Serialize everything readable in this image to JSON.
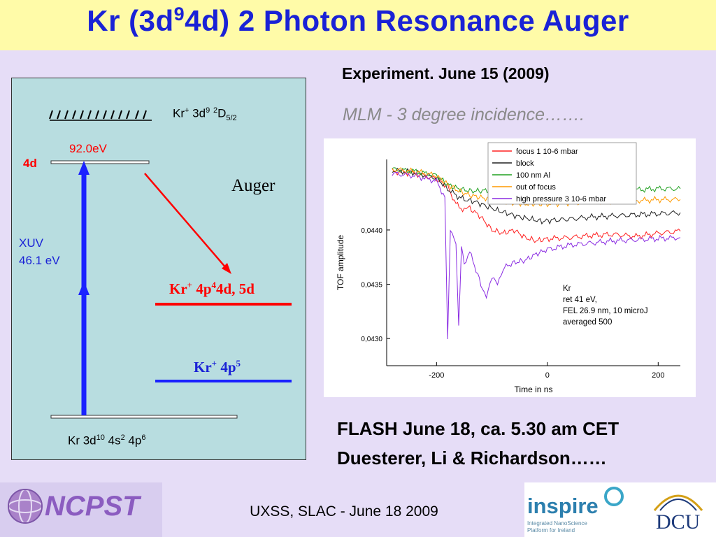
{
  "title": {
    "prefix": "Kr (3d",
    "sup": "9",
    "suffix": "4d) 2 Photon Resonance Auger"
  },
  "diagram": {
    "ion_level": {
      "base": "Kr",
      "plus": "+",
      "mid": " 3d",
      "sup1": "9",
      "sp": " ",
      "sup2": "2",
      "D": "D",
      "sub": "5/2"
    },
    "energy_label": "92.0eV",
    "state_4d": "4d",
    "xuv_line1": "XUV",
    "xuv_line2": "46.1 eV",
    "auger": "Auger",
    "final1": {
      "base": "Kr",
      "plus": "+",
      "mid": " 4p",
      "sup": "4",
      "end": "4d, 5d"
    },
    "final2": {
      "base": "Kr",
      "plus": "+",
      "mid": " 4p",
      "sup": "5"
    },
    "ground": {
      "a": "Kr 3d",
      "s1": "10",
      "b": " 4s",
      "s2": "2",
      "c": " 4p",
      "s3": "6"
    }
  },
  "experiment_heading": "Experiment. June 15 (2009)",
  "experiment_sub": "MLM - 3 degree incidence…….",
  "chart_data": {
    "type": "line",
    "xlabel": "Time in ns",
    "ylabel": "TOF amplitude",
    "x_ticks": [
      "-200",
      "0",
      "200"
    ],
    "y_ticks": [
      "0,0430",
      "0,0435",
      "0,0440"
    ],
    "xlim": [
      -290,
      240
    ],
    "ylim": [
      0.04275,
      0.04465
    ],
    "series": [
      {
        "name": "focus 1 10-6 mbar",
        "color": "#ff2020",
        "x": [
          -280,
          -240,
          -200,
          -180,
          -165,
          -150,
          -140,
          -120,
          -100,
          -80,
          -60,
          -40,
          -20,
          0,
          40,
          80,
          120,
          160,
          200,
          240
        ],
        "y": [
          0.04454,
          0.04452,
          0.04447,
          0.0444,
          0.04424,
          0.04418,
          0.0442,
          0.04412,
          0.044,
          0.04397,
          0.044,
          0.04393,
          0.0439,
          0.04392,
          0.04393,
          0.04395,
          0.04396,
          0.04394,
          0.04397,
          0.04399
        ]
      },
      {
        "name": "block",
        "color": "#202020",
        "x": [
          -280,
          -240,
          -200,
          -180,
          -165,
          -150,
          -130,
          -110,
          -90,
          -70,
          -50,
          -30,
          -10,
          10,
          40,
          80,
          120,
          160,
          200,
          240
        ],
        "y": [
          0.04455,
          0.04453,
          0.04448,
          0.04438,
          0.04432,
          0.04428,
          0.04426,
          0.04422,
          0.04418,
          0.04415,
          0.04412,
          0.0441,
          0.04408,
          0.04409,
          0.0441,
          0.04412,
          0.04413,
          0.04414,
          0.04415,
          0.04416
        ]
      },
      {
        "name": "100 nm Al",
        "color": "#20a020",
        "x": [
          -280,
          -240,
          -200,
          -180,
          -160,
          -140,
          -120,
          -100,
          -80,
          -60,
          -40,
          -20,
          0,
          40,
          80,
          120,
          160,
          200,
          240
        ],
        "y": [
          0.04456,
          0.04454,
          0.0445,
          0.04442,
          0.04438,
          0.04436,
          0.04436,
          0.04437,
          0.04437,
          0.04438,
          0.04437,
          0.04437,
          0.04438,
          0.04438,
          0.04437,
          0.04438,
          0.04437,
          0.04438,
          0.04438
        ]
      },
      {
        "name": "out of focus",
        "color": "#ff9a00",
        "x": [
          -280,
          -240,
          -200,
          -180,
          -160,
          -140,
          -120,
          -100,
          -80,
          -60,
          -40,
          -20,
          0,
          40,
          80,
          120,
          160,
          200,
          240
        ],
        "y": [
          0.04456,
          0.04454,
          0.0445,
          0.04442,
          0.04436,
          0.04432,
          0.0443,
          0.04428,
          0.04426,
          0.04425,
          0.04424,
          0.04424,
          0.04424,
          0.04425,
          0.04426,
          0.04426,
          0.04427,
          0.04428,
          0.04428
        ]
      },
      {
        "name": "high pressure 3 10-6 mbar",
        "color": "#8a2be2",
        "x": [
          -280,
          -240,
          -200,
          -185,
          -180,
          -175,
          -165,
          -160,
          -155,
          -150,
          -140,
          -120,
          -110,
          -100,
          -90,
          -80,
          -60,
          -40,
          -20,
          0,
          40,
          80,
          120,
          160,
          200,
          240
        ],
        "y": [
          0.04452,
          0.0445,
          0.04445,
          0.0443,
          0.043,
          0.044,
          0.0439,
          0.0431,
          0.04385,
          0.0437,
          0.0438,
          0.0435,
          0.0434,
          0.04355,
          0.0435,
          0.04365,
          0.0437,
          0.04372,
          0.04378,
          0.04382,
          0.04386,
          0.04388,
          0.0439,
          0.04391,
          0.04392,
          0.04393
        ]
      }
    ],
    "annotation": [
      "Kr",
      "ret 41 eV,",
      "FEL 26.9 nm, 10 microJ",
      "averaged 500"
    ],
    "legend_position": "top-right"
  },
  "flash_line1": "FLASH June 18, ca. 5.30 am CET",
  "flash_line2": "Duesterer, Li & Richardson……",
  "footer": {
    "ncpst": "NCPST",
    "center": "UXSS, SLAC - June 18 2009",
    "inspire": "inspire",
    "inspire_sub1": "Integrated NanoScience",
    "inspire_sub2": "Platform for Ireland",
    "dcu": "DCU"
  },
  "colors": {
    "title_blue": "#1a22d6",
    "title_bg": "#fffba8",
    "slide_bg": "#e6ddf7",
    "panel_bg": "#b8dde0",
    "red": "#ff0000"
  }
}
